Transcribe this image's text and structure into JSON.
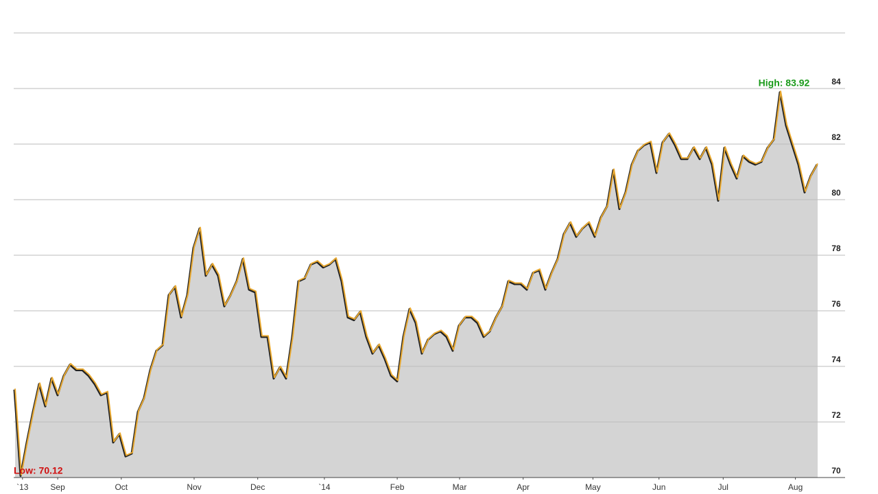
{
  "chart_data": {
    "type": "area",
    "annotations": {
      "high": "High: 83.92",
      "low": "Low: 70.12"
    },
    "series": [
      {
        "color": "#e8a830",
        "fill": "#d4d4d4",
        "values": [
          73.2,
          70.1,
          71.3,
          72.4,
          73.4,
          72.6,
          73.6,
          73.0,
          73.7,
          74.1,
          73.9,
          73.9,
          73.7,
          73.4,
          73.0,
          73.1,
          71.3,
          71.6,
          70.8,
          70.9,
          72.4,
          72.9,
          73.9,
          74.6,
          74.8,
          76.6,
          76.9,
          75.8,
          76.6,
          78.3,
          79.0,
          77.3,
          77.7,
          77.3,
          76.2,
          76.6,
          77.1,
          77.9,
          76.8,
          76.7,
          75.1,
          75.1,
          73.6,
          74.0,
          73.6,
          75.1,
          77.1,
          77.2,
          77.7,
          77.8,
          77.6,
          77.7,
          77.9,
          77.1,
          75.8,
          75.7,
          76.0,
          75.1,
          74.5,
          74.8,
          74.3,
          73.7,
          73.5,
          75.1,
          76.1,
          75.6,
          74.5,
          75.0,
          75.2,
          75.3,
          75.1,
          74.6,
          75.5,
          75.8,
          75.8,
          75.6,
          75.1,
          75.3,
          75.8,
          76.2,
          77.1,
          77.0,
          77.0,
          76.8,
          77.4,
          77.5,
          76.8,
          77.4,
          77.9,
          78.8,
          79.2,
          78.7,
          79.0,
          79.2,
          78.7,
          79.4,
          79.8,
          81.1,
          79.7,
          80.3,
          81.3,
          81.8,
          82.0,
          82.1,
          81.0,
          82.1,
          82.4,
          82.0,
          81.5,
          81.5,
          81.9,
          81.5,
          81.9,
          81.3,
          80.0,
          81.9,
          81.3,
          80.8,
          81.6,
          81.4,
          81.3,
          81.4,
          81.9,
          82.2,
          83.9,
          82.7,
          82.0,
          81.3,
          80.3,
          80.9,
          81.3
        ]
      }
    ],
    "xlim": [
      0,
      130
    ],
    "xticks": [
      {
        "value": 1.2,
        "label": "`13"
      },
      {
        "value": 6.9,
        "label": "Sep"
      },
      {
        "value": 17.2,
        "label": "Oct"
      },
      {
        "value": 29.0,
        "label": "Nov"
      },
      {
        "value": 39.3,
        "label": "Dec"
      },
      {
        "value": 50.1,
        "label": "`14"
      },
      {
        "value": 61.9,
        "label": "Feb"
      },
      {
        "value": 72.0,
        "label": "Mar"
      },
      {
        "value": 82.3,
        "label": "Apr"
      },
      {
        "value": 93.6,
        "label": "May"
      },
      {
        "value": 104.3,
        "label": "Jun"
      },
      {
        "value": 114.7,
        "label": "Jul"
      },
      {
        "value": 126.4,
        "label": "Aug"
      }
    ],
    "ylim": [
      70,
      86
    ],
    "yticks": [
      70,
      72,
      74,
      76,
      78,
      80,
      82,
      84
    ],
    "grid": true
  }
}
